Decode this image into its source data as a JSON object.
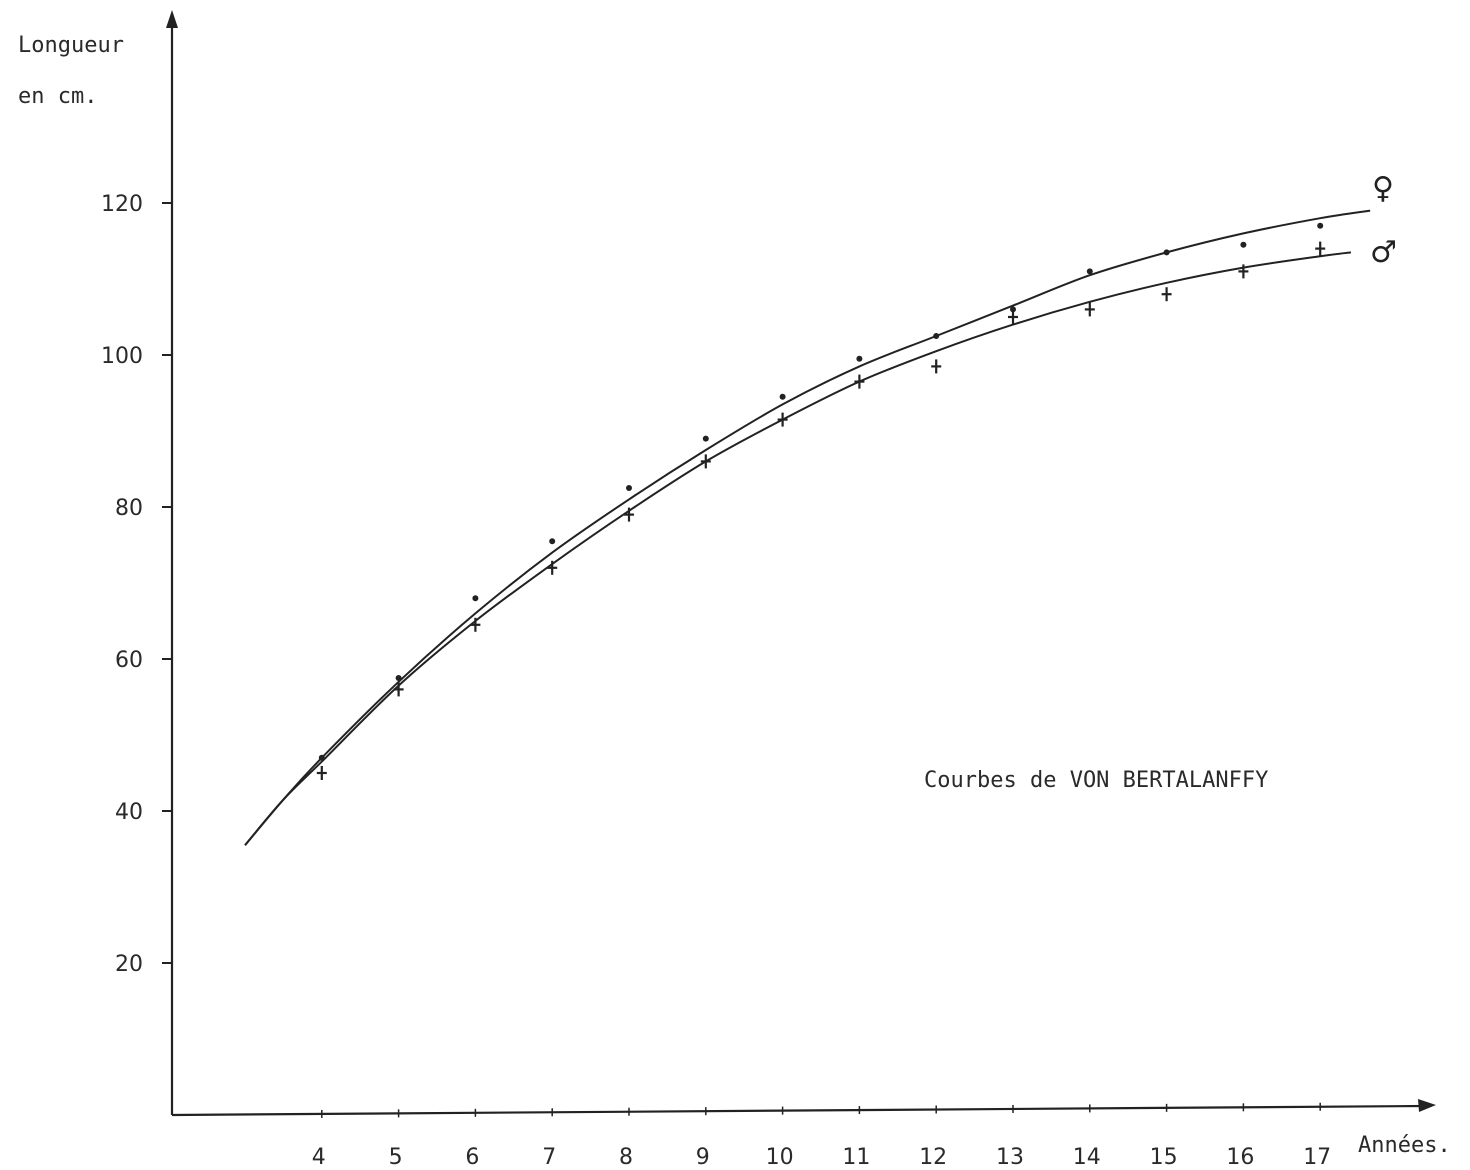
{
  "chart_data": {
    "type": "scatter",
    "ylabel_line1": "Longueur",
    "ylabel_line2": "en cm.",
    "xlabel": "Années.",
    "annotation": "Courbes de VON BERTALANFFY",
    "xlim": [
      2,
      18.5
    ],
    "ylim": [
      0,
      140
    ],
    "y_ticks": [
      20,
      40,
      60,
      80,
      100,
      120
    ],
    "x_ticks": [
      4,
      5,
      6,
      7,
      8,
      9,
      10,
      11,
      12,
      13,
      14,
      15,
      16,
      17
    ],
    "grid": false,
    "series": [
      {
        "name": "♀",
        "marker": "dot",
        "points": [
          {
            "x": 4,
            "y": 47
          },
          {
            "x": 5,
            "y": 57.5
          },
          {
            "x": 6,
            "y": 68
          },
          {
            "x": 7,
            "y": 75.5
          },
          {
            "x": 8,
            "y": 82.5
          },
          {
            "x": 9,
            "y": 89
          },
          {
            "x": 10,
            "y": 94.5
          },
          {
            "x": 11,
            "y": 99.5
          },
          {
            "x": 12,
            "y": 102.5
          },
          {
            "x": 13,
            "y": 106
          },
          {
            "x": 14,
            "y": 111
          },
          {
            "x": 15,
            "y": 113.5
          },
          {
            "x": 16,
            "y": 114.5
          },
          {
            "x": 17,
            "y": 117
          }
        ],
        "curve": {
          "x": [
            3,
            3.5,
            4,
            5,
            6,
            7,
            8,
            9,
            10,
            11,
            12,
            13,
            14,
            15,
            16,
            17,
            17.65
          ],
          "y": [
            35.5,
            41.5,
            47,
            57,
            66,
            74,
            81,
            87.5,
            93.5,
            98.5,
            102.5,
            106.5,
            110.5,
            113.5,
            116,
            118,
            119
          ]
        }
      },
      {
        "name": "♂",
        "marker": "cross",
        "points": [
          {
            "x": 4,
            "y": 45
          },
          {
            "x": 5,
            "y": 56
          },
          {
            "x": 6,
            "y": 64.5
          },
          {
            "x": 7,
            "y": 72
          },
          {
            "x": 8,
            "y": 79
          },
          {
            "x": 9,
            "y": 86
          },
          {
            "x": 10,
            "y": 91.5
          },
          {
            "x": 11,
            "y": 96.5
          },
          {
            "x": 12,
            "y": 98.5
          },
          {
            "x": 13,
            "y": 105
          },
          {
            "x": 14,
            "y": 106
          },
          {
            "x": 15,
            "y": 108
          },
          {
            "x": 16,
            "y": 111
          },
          {
            "x": 17,
            "y": 114
          }
        ],
        "curve": {
          "x": [
            3,
            3.5,
            4,
            5,
            6,
            7,
            8,
            9,
            10,
            11,
            12,
            13,
            14,
            15,
            16,
            17,
            17.4
          ],
          "y": [
            35.5,
            41.5,
            46.5,
            56.5,
            65,
            72.5,
            79.5,
            86,
            91.5,
            96.5,
            100.5,
            104,
            107,
            109.5,
            111.5,
            113,
            113.5
          ]
        }
      }
    ]
  }
}
